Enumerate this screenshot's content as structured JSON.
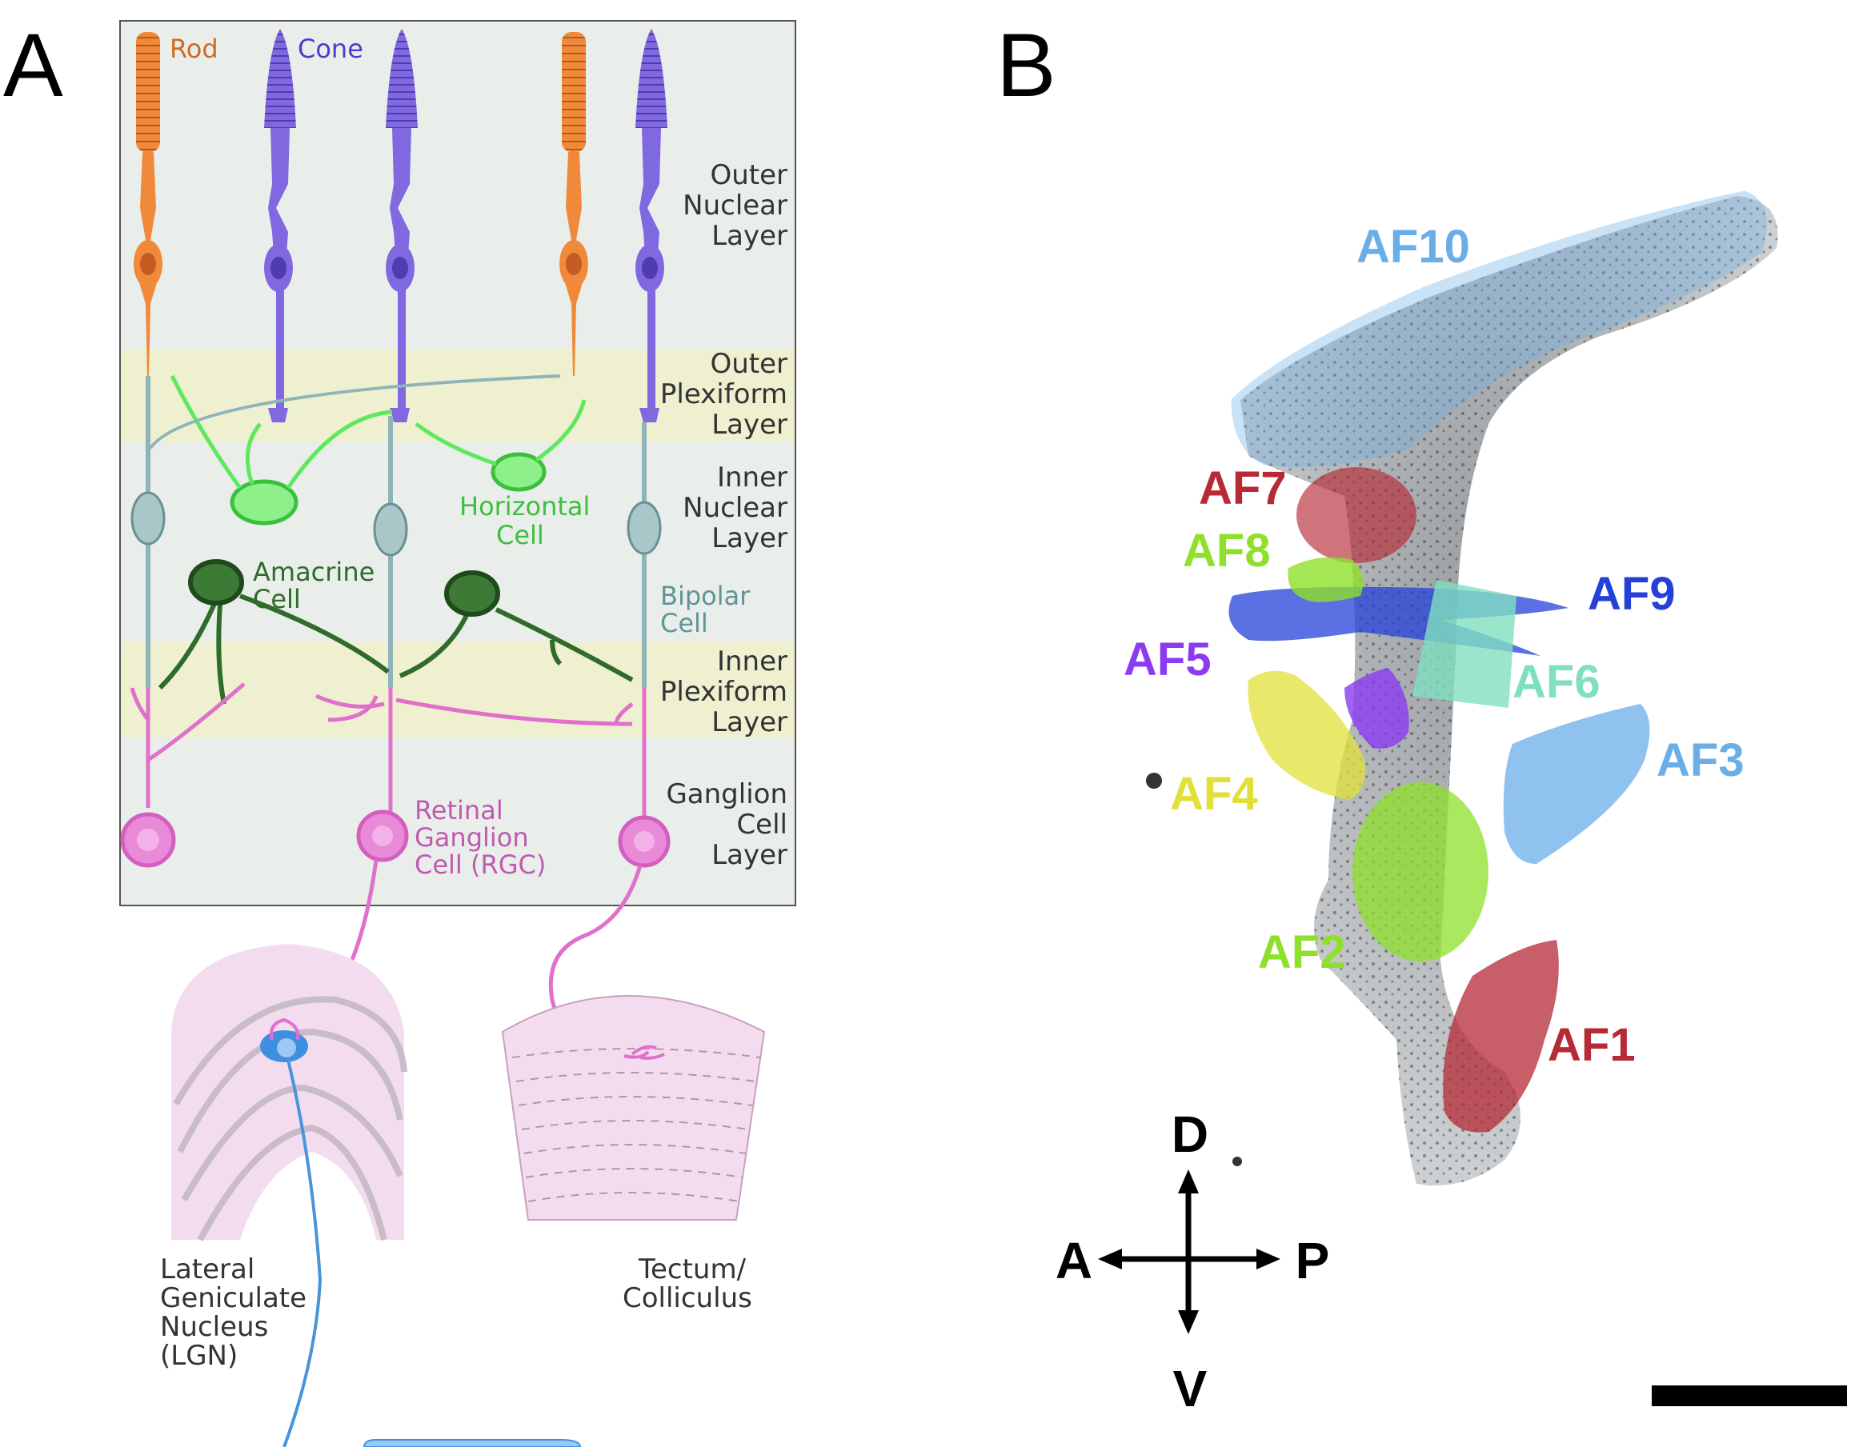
{
  "panelA": {
    "letter": "A",
    "cells": {
      "rod": "Rod",
      "cone": "Cone",
      "horizontal": [
        "Horizontal",
        "Cell"
      ],
      "amacrine": [
        "Amacrine",
        "Cell"
      ],
      "bipolar": [
        "Bipolar",
        "Cell"
      ],
      "rgc": [
        "Retinal",
        "Ganglion",
        "Cell (RGC)"
      ]
    },
    "layers": {
      "onl": [
        "Outer",
        "Nuclear",
        "Layer"
      ],
      "opl": [
        "Outer",
        "Plexiform",
        "Layer"
      ],
      "inl": [
        "Inner",
        "Nuclear",
        "Layer"
      ],
      "ipl": [
        "Inner",
        "Plexiform",
        "Layer"
      ],
      "gcl": [
        "Ganglion",
        "Cell",
        "Layer"
      ]
    },
    "targets": {
      "lgn": [
        "Lateral",
        "Geniculate",
        "Nucleus",
        "(LGN)"
      ],
      "tectum": [
        "Tectum/",
        "Colliculus"
      ]
    },
    "colors": {
      "rod": "#f08a3a",
      "cone": "#8068e0",
      "horizontal": "#5ee85e",
      "amacrine": "#2f6b2a",
      "bipolar": "#8fb4b8",
      "rgc": "#e070cc",
      "lgnRelay": "#3f8fe0",
      "panelBg": "#e9eeeb",
      "plexiformBand": "#eef0d0"
    }
  },
  "panelB": {
    "letter": "B",
    "regions": [
      {
        "label": "AF10",
        "color": "#6aaee8"
      },
      {
        "label": "AF7",
        "color": "#b52a35"
      },
      {
        "label": "AF8",
        "color": "#8ee02a"
      },
      {
        "label": "AF9",
        "color": "#2440d8"
      },
      {
        "label": "AF5",
        "color": "#8b3cf0"
      },
      {
        "label": "AF6",
        "color": "#7fe0c0"
      },
      {
        "label": "AF4",
        "color": "#e2e038"
      },
      {
        "label": "AF3",
        "color": "#6aaee8"
      },
      {
        "label": "AF2",
        "color": "#8ee02a"
      },
      {
        "label": "AF1",
        "color": "#b52a35"
      }
    ],
    "axes": {
      "dorsal": "D",
      "ventral": "V",
      "anterior": "A",
      "posterior": "P"
    }
  }
}
